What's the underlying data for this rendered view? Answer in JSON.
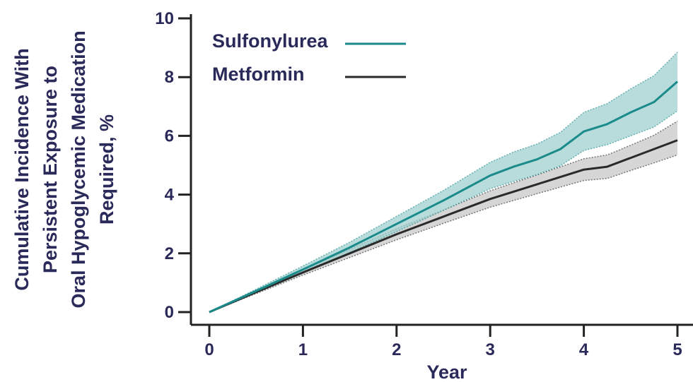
{
  "chart_data": {
    "type": "line",
    "xlabel": "Year",
    "ylabel_lines": [
      "Cumulative Incidence With",
      "Persistent Exposure to",
      "Oral Hypoglycemic Medication",
      "Required, %"
    ],
    "xlim": [
      0,
      5
    ],
    "ylim": [
      0,
      10
    ],
    "x_ticks": [
      "0",
      "1",
      "2",
      "3",
      "4",
      "5"
    ],
    "y_ticks": [
      "0",
      "2",
      "4",
      "6",
      "8",
      "10"
    ],
    "grid": false,
    "legend_position": "top-left",
    "series": [
      {
        "name": "Sulfonylurea",
        "color": "#1a8a8a",
        "band_color": "#9fd0cf",
        "x": [
          0,
          0.5,
          1,
          1.5,
          2,
          2.5,
          3,
          3.25,
          3.5,
          3.75,
          4,
          4.25,
          4.5,
          4.75,
          5
        ],
        "y": [
          0,
          0.72,
          1.45,
          2.2,
          3.0,
          3.8,
          4.65,
          4.95,
          5.2,
          5.55,
          6.15,
          6.4,
          6.8,
          7.15,
          7.85
        ],
        "lower": [
          0,
          0.66,
          1.33,
          2.02,
          2.74,
          3.46,
          4.2,
          4.45,
          4.68,
          4.98,
          5.5,
          5.7,
          6.0,
          6.3,
          6.85
        ],
        "upper": [
          0,
          0.78,
          1.57,
          2.38,
          3.26,
          4.14,
          5.1,
          5.45,
          5.72,
          6.12,
          6.8,
          7.1,
          7.6,
          8.05,
          8.85
        ]
      },
      {
        "name": "Metformin",
        "color": "#2a2a2a",
        "band_color": "#c8c8c8",
        "x": [
          0,
          0.5,
          1,
          1.5,
          2,
          2.5,
          3,
          3.5,
          4,
          4.25,
          4.5,
          4.75,
          5
        ],
        "y": [
          0,
          0.68,
          1.35,
          2.0,
          2.65,
          3.25,
          3.85,
          4.35,
          4.85,
          4.95,
          5.25,
          5.55,
          5.85
        ],
        "lower": [
          0,
          0.63,
          1.26,
          1.86,
          2.46,
          3.02,
          3.57,
          4.03,
          4.48,
          4.55,
          4.82,
          5.08,
          5.35
        ],
        "upper": [
          0,
          0.73,
          1.44,
          2.14,
          2.84,
          3.48,
          4.13,
          4.67,
          5.22,
          5.35,
          5.68,
          6.02,
          6.5
        ]
      }
    ]
  }
}
